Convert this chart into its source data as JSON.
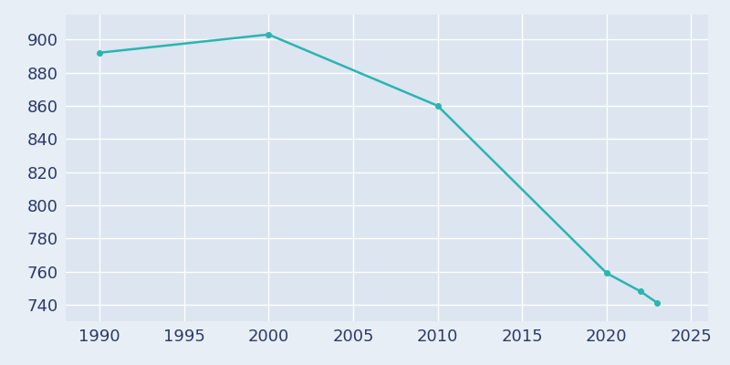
{
  "years": [
    1990,
    2000,
    2010,
    2020,
    2022,
    2023
  ],
  "population": [
    892,
    903,
    860,
    759,
    748,
    741
  ],
  "line_color": "#2ab5b0",
  "marker": "o",
  "marker_size": 4,
  "line_width": 1.8,
  "fig_bg_color": "#e8eef5",
  "plot_bg_color": "#dce5f0",
  "grid_color": "#ffffff",
  "tick_color": "#2b3a6b",
  "xlim": [
    1988,
    2026
  ],
  "ylim": [
    730,
    915
  ],
  "xticks": [
    1990,
    1995,
    2000,
    2005,
    2010,
    2015,
    2020,
    2025
  ],
  "yticks": [
    740,
    760,
    780,
    800,
    820,
    840,
    860,
    880,
    900
  ],
  "tick_fontsize": 13
}
